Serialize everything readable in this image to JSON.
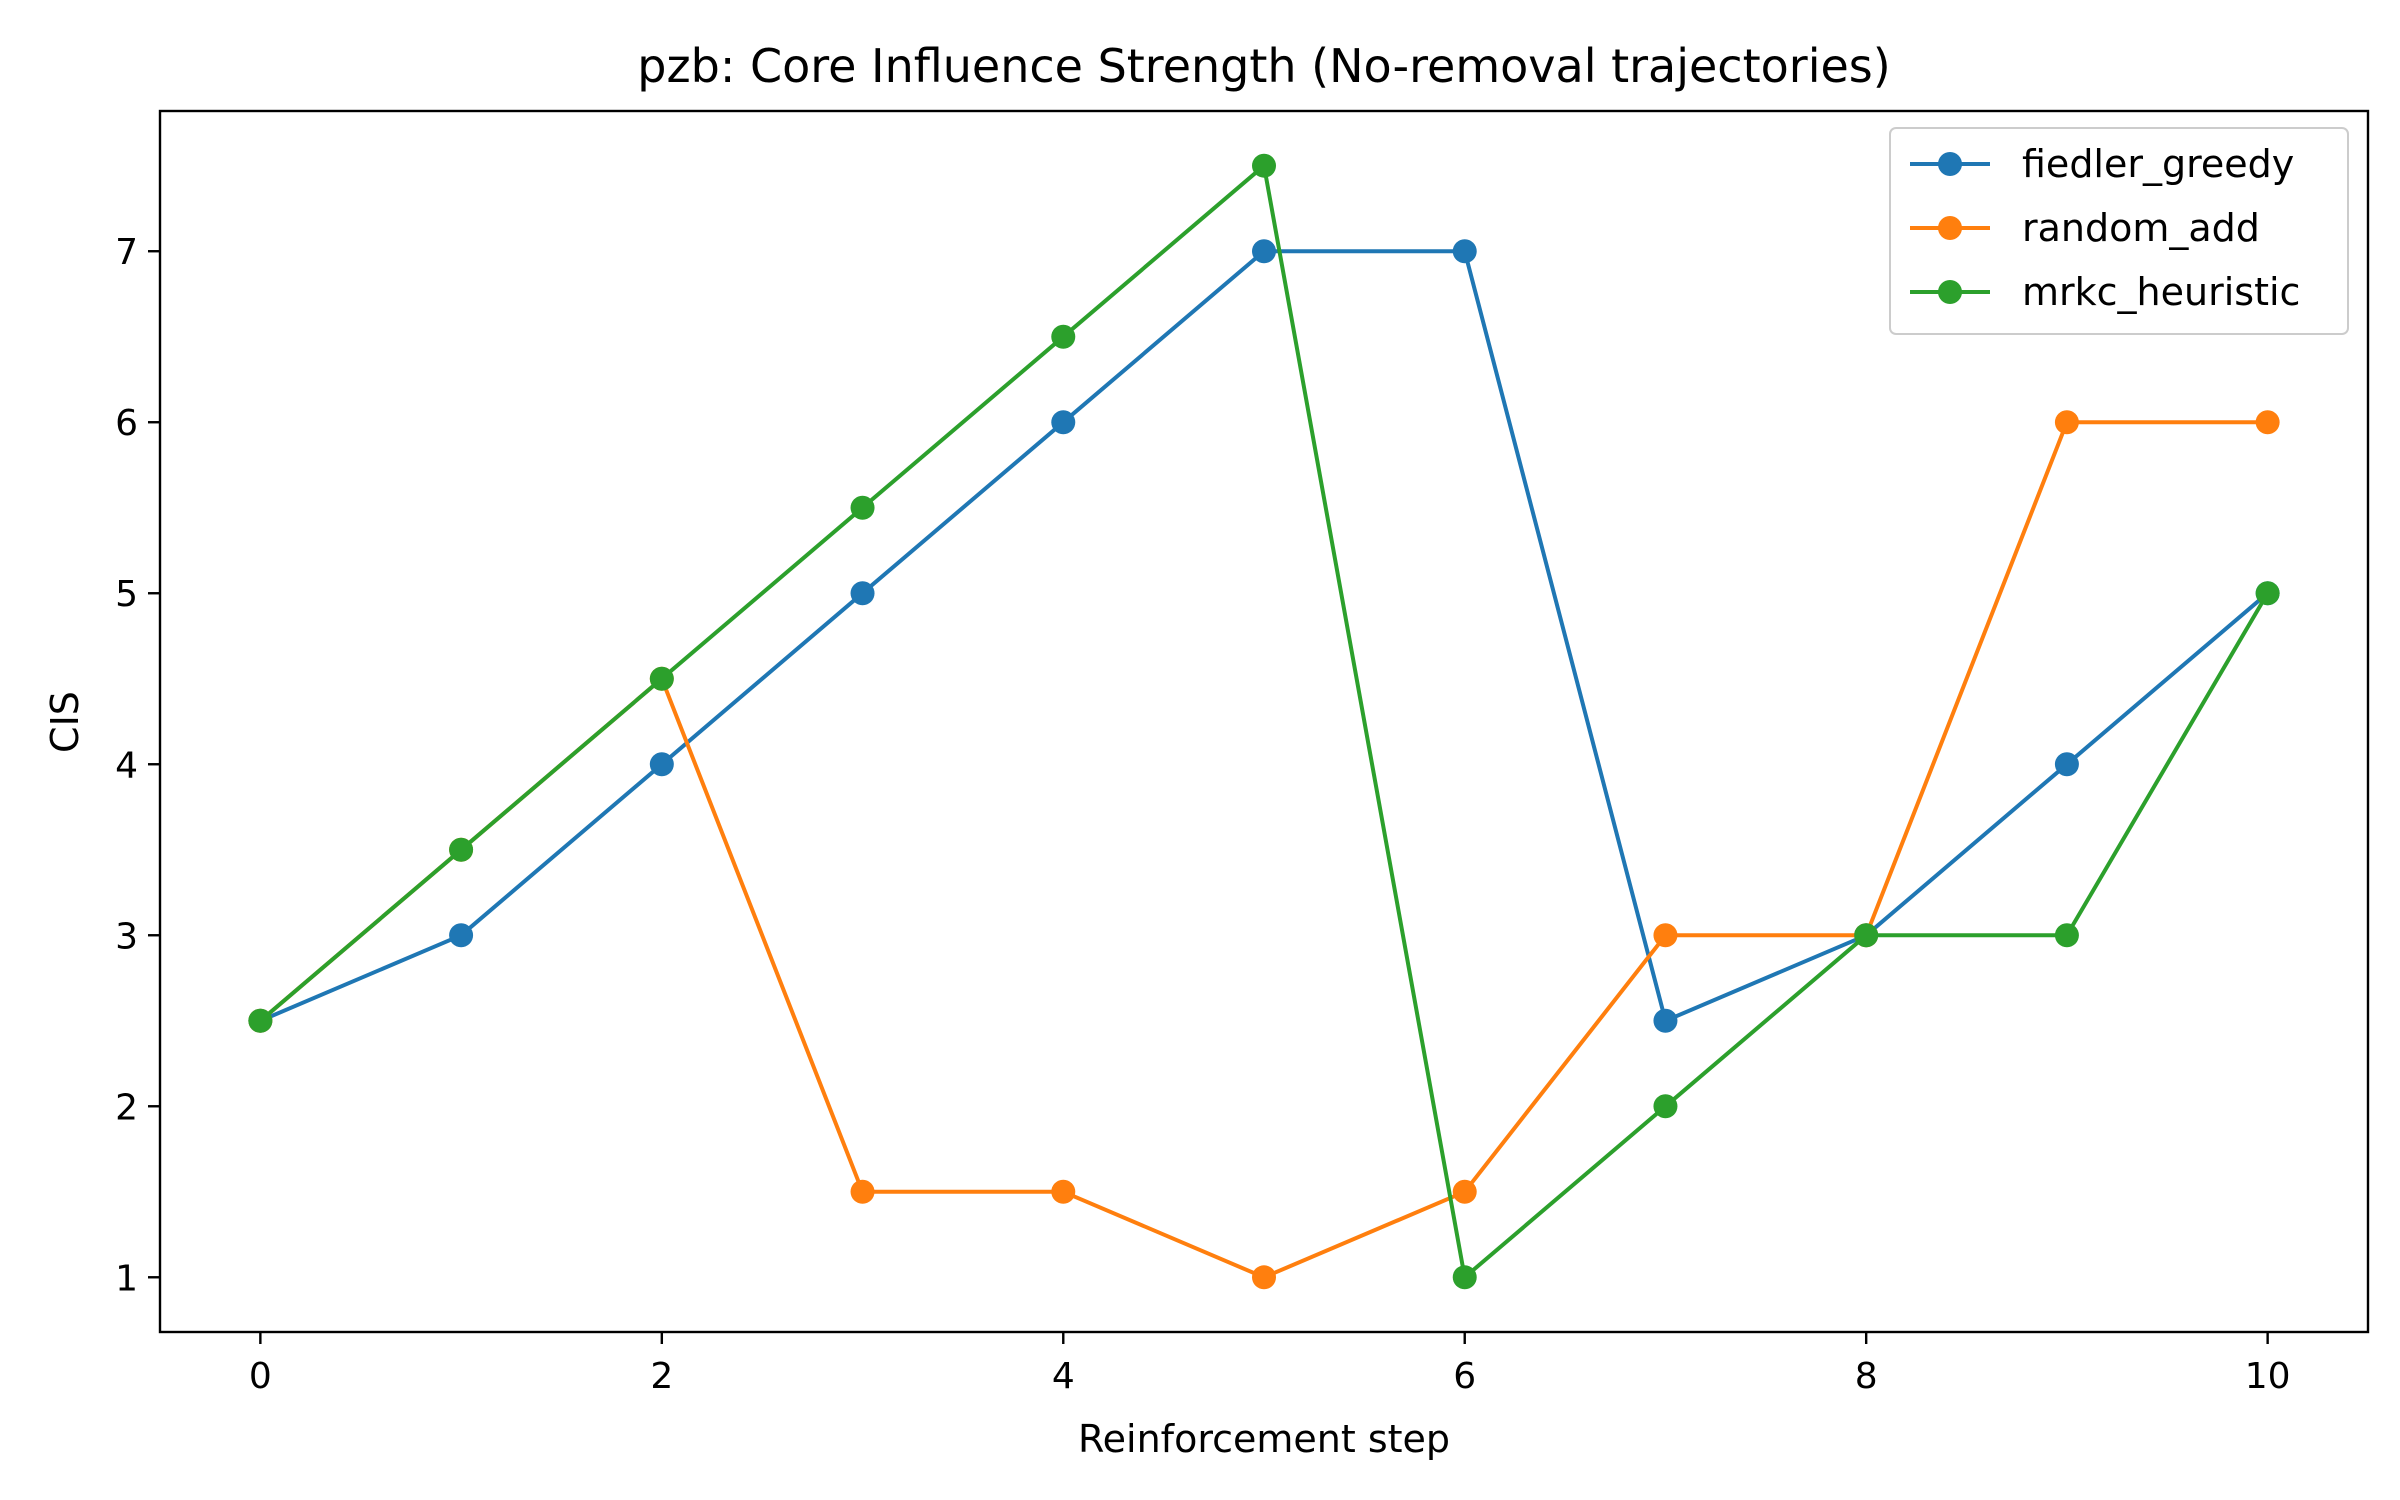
{
  "chart_data": {
    "type": "line",
    "title": "pzb: Core Influence Strength (No-removal trajectories)",
    "xlabel": "Reinforcement step",
    "ylabel": "CIS",
    "x": [
      0,
      1,
      2,
      3,
      4,
      5,
      6,
      7,
      8,
      9,
      10
    ],
    "xlim": [
      -0.5,
      10.5
    ],
    "ylim": [
      0.68,
      7.82
    ],
    "xticks": [
      0,
      2,
      4,
      6,
      8,
      10
    ],
    "yticks": [
      1,
      2,
      3,
      4,
      5,
      6,
      7
    ],
    "grid": false,
    "legend_position": "top-right",
    "series": [
      {
        "name": "fiedler_greedy",
        "color": "#1f77b4",
        "values": [
          2.5,
          3,
          4,
          5,
          6,
          7,
          7,
          2.5,
          3,
          4,
          5
        ]
      },
      {
        "name": "random_add",
        "color": "#ff7f0e",
        "values": [
          2.5,
          3.5,
          4.5,
          1.5,
          1.5,
          1,
          1.5,
          3,
          3,
          6,
          6
        ]
      },
      {
        "name": "mrkc_heuristic",
        "color": "#2ca02c",
        "values": [
          2.5,
          3.5,
          4.5,
          5.5,
          6.5,
          7.5,
          1,
          2,
          3,
          3,
          5
        ]
      }
    ]
  }
}
